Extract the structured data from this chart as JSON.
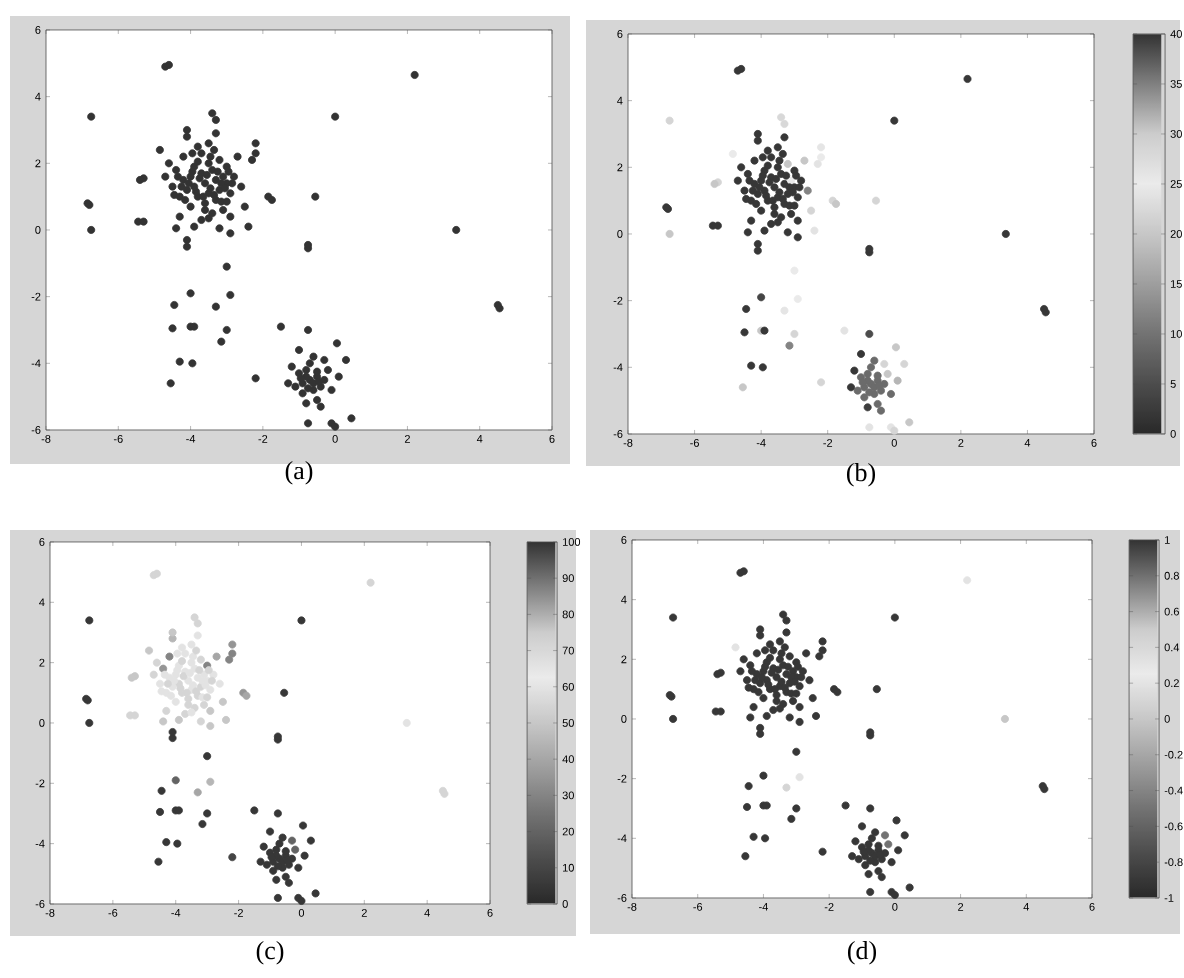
{
  "chart_data": [
    {
      "type": "scatter",
      "title": "(a)",
      "marker": "circle",
      "color": "#333333",
      "xlim": [
        -8,
        6
      ],
      "ylim": [
        -6,
        6
      ],
      "xticks": [
        -8,
        -6,
        -4,
        -2,
        0,
        2,
        4,
        6
      ],
      "yticks": [
        -6,
        -4,
        -2,
        0,
        2,
        4,
        6
      ],
      "x": [
        -3.6,
        -3.3,
        -3.9,
        -3.5,
        -3.7,
        -3.2,
        -4.0,
        -3.4,
        -3.8,
        -3.1,
        -4.1,
        -3.5,
        -3.6,
        -3.0,
        -4.2,
        -3.3,
        -3.9,
        -3.2,
        -4.3,
        -2.9,
        -3.7,
        -4.4,
        -3.0,
        -4.0,
        -3.4,
        -2.8,
        -4.5,
        -3.8,
        -3.1,
        -4.2,
        -4.6,
        -3.5,
        -2.9,
        -4.3,
        -3.7,
        -4.1,
        -3.3,
        -2.7,
        -4.7,
        -2.6,
        -3.9,
        -3.2,
        -2.9,
        -4.4,
        -3.3,
        -3.4,
        -4.1,
        -2.5,
        -2.4,
        -2.2,
        -2.3,
        -2.2,
        -1.85,
        -1.75,
        -5.3,
        -5.4,
        -5.45,
        -5.3,
        -4.85,
        -0.7,
        -0.5,
        -0.9,
        -0.6,
        -0.8,
        -0.4,
        -1.0,
        -0.3,
        -0.7,
        -0.9,
        -0.5,
        -1.1,
        -0.2,
        -0.6,
        -1.2,
        -0.1,
        -0.8,
        -1.3,
        -0.3,
        -1.0,
        -0.4,
        0.1,
        -4.7,
        -4.6,
        -6.75,
        -6.85,
        -6.8,
        -6.75,
        0.0,
        -0.55,
        2.2,
        3.35,
        4.55,
        4.5,
        -0.75,
        -0.75,
        -4.1,
        -4.1,
        -3.0,
        -4.0,
        -2.9,
        -3.3,
        -4.45,
        -4.5,
        -4.0,
        -3.9,
        -3.0,
        -3.15,
        -4.3,
        -3.95,
        -4.55,
        -2.2,
        -1.5,
        -0.75,
        0.05,
        0.3,
        -0.75,
        -0.1,
        0.0,
        0.45,
        -3.45,
        -3.75,
        -3.15,
        -3.85,
        -3.55,
        -3.35,
        -3.95,
        -3.25,
        -4.05,
        -3.65,
        -3.05,
        -4.25,
        -3.45,
        -3.8,
        -3.15,
        -3.6,
        -4.15,
        -2.95,
        -4.35,
        -3.35,
        -3.95,
        -3.0,
        -4.45,
        -2.85,
        -3.5,
        -0.6,
        -0.8,
        -0.5,
        -0.75,
        -0.95,
        -0.45
      ],
      "values": [
        1.4,
        1.5,
        1.3,
        1.1,
        1.7,
        1.2,
        1.6,
        1.8,
        1.0,
        1.6,
        1.2,
        2.0,
        0.8,
        1.4,
        1.5,
        0.9,
        1.9,
        2.1,
        1.0,
        1.1,
        2.3,
        1.8,
        1.9,
        0.7,
        0.5,
        1.6,
        1.3,
        2.5,
        0.6,
        2.2,
        2.0,
        2.6,
        0.4,
        0.4,
        0.3,
        2.8,
        2.9,
        2.2,
        1.6,
        1.3,
        0.1,
        0.05,
        -0.1,
        0.05,
        3.3,
        3.5,
        3.0,
        0.7,
        0.1,
        2.3,
        2.1,
        2.6,
        1.0,
        0.9,
        1.55,
        1.5,
        0.25,
        0.25,
        2.4,
        -4.5,
        -4.4,
        -4.6,
        -4.8,
        -4.2,
        -4.7,
        -4.3,
        -4.5,
        -4.0,
        -4.9,
        -5.1,
        -4.7,
        -4.2,
        -3.8,
        -4.1,
        -4.8,
        -5.2,
        -4.6,
        -3.9,
        -3.6,
        -5.3,
        -4.4,
        4.9,
        4.95,
        3.4,
        0.8,
        0.75,
        0.0,
        3.4,
        1.0,
        4.65,
        0.0,
        -2.35,
        -2.25,
        -0.55,
        -0.45,
        -0.5,
        -0.3,
        -1.1,
        -1.9,
        -1.95,
        -2.3,
        -2.25,
        -2.95,
        -2.9,
        -2.9,
        -3.0,
        -3.35,
        -3.95,
        -4.0,
        -4.6,
        -4.45,
        -2.9,
        -3.0,
        -3.4,
        -3.9,
        -5.8,
        -5.8,
        -5.9,
        -5.65,
        1.25,
        1.55,
        1.4,
        1.15,
        1.65,
        1.05,
        1.75,
        1.75,
        1.4,
        1.0,
        1.25,
        1.3,
        2.2,
        2.05,
        0.85,
        0.6,
        0.9,
        1.75,
        1.6,
        2.4,
        2.3,
        0.85,
        1.05,
        1.4,
        0.35,
        -4.6,
        -4.4,
        -4.25,
        -4.75,
        -4.45,
        -4.55
      ]
    },
    {
      "type": "scatter",
      "title": "(b)",
      "marker": "circle",
      "xlim": [
        -8,
        6
      ],
      "ylim": [
        -6,
        6
      ],
      "xticks": [
        -8,
        -6,
        -4,
        -2,
        0,
        2,
        4,
        6
      ],
      "yticks": [
        -6,
        -4,
        -2,
        0,
        2,
        4,
        6
      ],
      "clim": [
        0,
        40
      ],
      "cticks": [
        0,
        5,
        10,
        15,
        20,
        25,
        30,
        35,
        40
      ],
      "x": [
        -3.6,
        -3.3,
        -3.9,
        -3.5,
        -3.7,
        -3.2,
        -4.0,
        -3.4,
        -3.8,
        -3.1,
        -4.1,
        -3.5,
        -3.6,
        -3.0,
        -4.2,
        -3.3,
        -3.9,
        -3.2,
        -4.3,
        -2.9,
        -3.7,
        -4.4,
        -3.0,
        -4.0,
        -3.4,
        -2.8,
        -4.5,
        -3.8,
        -3.1,
        -4.2,
        -4.6,
        -3.5,
        -2.9,
        -4.3,
        -3.7,
        -4.1,
        -3.3,
        -2.7,
        -4.7,
        -2.6,
        -3.9,
        -3.2,
        -2.9,
        -4.4,
        -3.3,
        -3.4,
        -4.1,
        -2.5,
        -2.4,
        -2.2,
        -2.3,
        -2.2,
        -1.85,
        -1.75,
        -5.3,
        -5.4,
        -5.45,
        -5.3,
        -4.85,
        -0.7,
        -0.5,
        -0.9,
        -0.6,
        -0.8,
        -0.4,
        -1.0,
        -0.3,
        -0.7,
        -0.9,
        -0.5,
        -1.1,
        -0.2,
        -0.6,
        -1.2,
        -0.1,
        -0.8,
        -1.3,
        -0.3,
        -1.0,
        -0.4,
        0.1,
        -4.7,
        -4.6,
        -6.75,
        -6.85,
        -6.8,
        -6.75,
        0.0,
        -0.55,
        2.2,
        3.35,
        4.55,
        4.5,
        -0.75,
        -0.75,
        -4.1,
        -4.1,
        -3.0,
        -4.0,
        -2.9,
        -3.3,
        -4.45,
        -4.5,
        -4.0,
        -3.9,
        -3.0,
        -3.15,
        -4.3,
        -3.95,
        -4.55,
        -2.2,
        -1.5,
        -0.75,
        0.05,
        0.3,
        -0.75,
        -0.1,
        0.0,
        0.45,
        -3.45,
        -3.75,
        -3.15,
        -3.85,
        -3.55,
        -3.35,
        -3.95,
        -3.25,
        -4.05,
        -3.65,
        -3.05,
        -4.25,
        -3.45,
        -3.8,
        -3.15,
        -3.6,
        -4.15,
        -2.95,
        -4.35,
        -3.35,
        -3.95,
        -3.0,
        -4.45,
        -2.85,
        -3.5,
        -0.6,
        -0.8,
        -0.5,
        -0.75,
        -0.95,
        -0.45
      ],
      "values": [
        1.4,
        1.5,
        1.3,
        1.1,
        1.7,
        1.2,
        1.6,
        1.8,
        1.0,
        1.6,
        1.2,
        2.0,
        0.8,
        1.4,
        1.5,
        0.9,
        1.9,
        2.1,
        1.0,
        1.1,
        2.3,
        1.8,
        1.9,
        0.7,
        0.5,
        1.6,
        1.3,
        2.5,
        0.6,
        2.2,
        2.0,
        2.6,
        0.4,
        0.4,
        0.3,
        2.8,
        2.9,
        2.2,
        1.6,
        1.3,
        0.1,
        0.05,
        -0.1,
        0.05,
        3.3,
        3.5,
        3.0,
        0.7,
        0.1,
        2.3,
        2.1,
        2.6,
        1.0,
        0.9,
        1.55,
        1.5,
        0.25,
        0.25,
        2.4,
        -4.5,
        -4.4,
        -4.6,
        -4.8,
        -4.2,
        -4.7,
        -4.3,
        -4.5,
        -4.0,
        -4.9,
        -5.1,
        -4.7,
        -4.2,
        -3.8,
        -4.1,
        -4.8,
        -5.2,
        -4.6,
        -3.9,
        -3.6,
        -5.3,
        -4.4,
        4.9,
        4.95,
        3.4,
        0.8,
        0.75,
        0.0,
        3.4,
        1.0,
        4.65,
        0.0,
        -2.35,
        -2.25,
        -0.55,
        -0.45,
        -0.5,
        -0.3,
        -1.1,
        -1.9,
        -1.95,
        -2.3,
        -2.25,
        -2.95,
        -2.9,
        -2.9,
        -3.0,
        -3.35,
        -3.95,
        -4.0,
        -4.6,
        -4.45,
        -2.9,
        -3.0,
        -3.4,
        -3.9,
        -5.8,
        -5.8,
        -5.9,
        -5.65,
        1.25,
        1.55,
        1.4,
        1.15,
        1.65,
        1.05,
        1.75,
        1.75,
        1.4,
        1.0,
        1.25,
        1.3,
        2.2,
        2.05,
        0.85,
        0.6,
        0.9,
        1.75,
        1.6,
        2.4,
        2.3,
        0.85,
        1.05,
        1.4,
        0.35,
        -4.6,
        -4.4,
        -4.25,
        -4.75,
        -4.45,
        -4.55
      ],
      "cvalues": [
        2,
        2,
        2,
        2,
        2,
        2,
        2,
        2,
        2,
        25,
        2,
        2,
        2,
        2,
        2,
        2,
        2,
        20,
        2,
        2,
        2,
        2,
        2,
        2,
        2,
        2,
        2,
        2,
        2,
        2,
        2,
        2,
        2,
        2,
        2,
        2,
        2,
        20,
        2,
        12,
        2,
        2,
        2,
        2,
        28,
        28,
        2,
        22,
        24,
        25,
        24,
        26,
        22,
        20,
        22,
        20,
        2,
        2,
        25,
        9,
        9,
        9,
        9,
        9,
        9,
        9,
        9,
        9,
        9,
        9,
        9,
        20,
        9,
        2,
        9,
        3,
        2,
        22,
        2,
        9,
        18,
        2,
        2,
        22,
        2,
        2,
        20,
        2,
        22,
        2,
        2,
        2,
        2,
        2,
        2,
        2,
        2,
        25,
        4,
        25,
        26,
        2,
        2,
        20,
        2,
        22,
        12,
        2,
        2,
        20,
        22,
        24,
        5,
        20,
        22,
        24,
        24,
        22,
        20,
        2,
        2,
        2,
        2,
        2,
        2,
        2,
        2,
        2,
        2,
        2,
        2,
        2,
        2,
        2,
        2,
        2,
        2,
        2,
        2,
        2,
        2,
        2,
        2,
        2,
        9,
        9,
        9,
        9,
        9,
        9
      ]
    },
    {
      "type": "scatter",
      "title": "(c)",
      "marker": "circle",
      "xlim": [
        -8,
        6
      ],
      "ylim": [
        -6,
        6
      ],
      "xticks": [
        -8,
        -6,
        -4,
        -2,
        0,
        2,
        4,
        6
      ],
      "yticks": [
        -6,
        -4,
        -2,
        0,
        2,
        4,
        6
      ],
      "clim": [
        0,
        100
      ],
      "cticks": [
        0,
        10,
        20,
        30,
        40,
        50,
        60,
        70,
        80,
        90,
        100
      ],
      "x": [
        -3.6,
        -3.3,
        -3.9,
        -3.5,
        -3.7,
        -3.2,
        -4.0,
        -3.4,
        -3.8,
        -3.1,
        -4.1,
        -3.5,
        -3.6,
        -3.0,
        -4.2,
        -3.3,
        -3.9,
        -3.2,
        -4.3,
        -2.9,
        -3.7,
        -4.4,
        -3.0,
        -4.0,
        -3.4,
        -2.8,
        -4.5,
        -3.8,
        -3.1,
        -4.2,
        -4.6,
        -3.5,
        -2.9,
        -4.3,
        -3.7,
        -4.1,
        -3.3,
        -2.7,
        -4.7,
        -2.6,
        -3.9,
        -3.2,
        -2.9,
        -4.4,
        -3.3,
        -3.4,
        -4.1,
        -2.5,
        -2.4,
        -2.2,
        -2.3,
        -2.2,
        -1.85,
        -1.75,
        -5.3,
        -5.4,
        -5.45,
        -5.3,
        -4.85,
        -0.7,
        -0.5,
        -0.9,
        -0.6,
        -0.8,
        -0.4,
        -1.0,
        -0.3,
        -0.7,
        -0.9,
        -0.5,
        -1.1,
        -0.2,
        -0.6,
        -1.2,
        -0.1,
        -0.8,
        -1.3,
        -0.3,
        -1.0,
        -0.4,
        0.1,
        -4.7,
        -4.6,
        -6.75,
        -6.85,
        -6.8,
        -6.75,
        0.0,
        -0.55,
        2.2,
        3.35,
        4.55,
        4.5,
        -0.75,
        -0.75,
        -4.1,
        -4.1,
        -3.0,
        -4.0,
        -2.9,
        -3.3,
        -4.45,
        -4.5,
        -4.0,
        -3.9,
        -3.0,
        -3.15,
        -4.3,
        -3.95,
        -4.55,
        -2.2,
        -1.5,
        -0.75,
        0.05,
        0.3,
        -0.75,
        -0.1,
        0.0,
        0.45,
        -3.45,
        -3.75,
        -3.15,
        -3.85,
        -3.55,
        -3.35,
        -3.95,
        -3.25,
        -4.05,
        -3.65,
        -3.05,
        -4.25,
        -3.45,
        -3.8,
        -3.15,
        -3.6,
        -4.15,
        -2.95,
        -4.35,
        -3.35,
        -3.95,
        -3.0,
        -4.45,
        -2.85,
        -3.5,
        -0.6,
        -0.8,
        -0.5,
        -0.75,
        -0.95,
        -0.45
      ],
      "values": [
        1.4,
        1.5,
        1.3,
        1.1,
        1.7,
        1.2,
        1.6,
        1.8,
        1.0,
        1.6,
        1.2,
        2.0,
        0.8,
        1.4,
        1.5,
        0.9,
        1.9,
        2.1,
        1.0,
        1.1,
        2.3,
        1.8,
        1.9,
        0.7,
        0.5,
        1.6,
        1.3,
        2.5,
        0.6,
        2.2,
        2.0,
        2.6,
        0.4,
        0.4,
        0.3,
        2.8,
        2.9,
        2.2,
        1.6,
        1.3,
        0.1,
        0.05,
        -0.1,
        0.05,
        3.3,
        3.5,
        3.0,
        0.7,
        0.1,
        2.3,
        2.1,
        2.6,
        1.0,
        0.9,
        1.55,
        1.5,
        0.25,
        0.25,
        2.4,
        -4.5,
        -4.4,
        -4.6,
        -4.8,
        -4.2,
        -4.7,
        -4.3,
        -4.5,
        -4.0,
        -4.9,
        -5.1,
        -4.7,
        -4.2,
        -3.8,
        -4.1,
        -4.8,
        -5.2,
        -4.6,
        -3.9,
        -3.6,
        -5.3,
        -4.4,
        4.9,
        4.95,
        3.4,
        0.8,
        0.75,
        0.0,
        3.4,
        1.0,
        4.65,
        0.0,
        -2.35,
        -2.25,
        -0.55,
        -0.45,
        -0.5,
        -0.3,
        -1.1,
        -1.9,
        -1.95,
        -2.3,
        -2.25,
        -2.95,
        -2.9,
        -2.9,
        -3.0,
        -3.35,
        -3.95,
        -4.0,
        -4.6,
        -4.45,
        -2.9,
        -3.0,
        -3.4,
        -3.9,
        -5.8,
        -5.8,
        -5.9,
        -5.65,
        1.25,
        1.55,
        1.4,
        1.15,
        1.65,
        1.05,
        1.75,
        1.75,
        1.4,
        1.0,
        1.25,
        1.3,
        2.2,
        2.05,
        0.85,
        0.6,
        0.9,
        1.75,
        1.6,
        2.4,
        2.3,
        0.85,
        1.05,
        1.4,
        0.35,
        -4.6,
        -4.4,
        -4.25,
        -4.75,
        -4.45,
        -4.55
      ],
      "cvalues": [
        60,
        60,
        55,
        60,
        60,
        55,
        60,
        60,
        55,
        60,
        60,
        60,
        55,
        60,
        60,
        55,
        60,
        55,
        60,
        60,
        60,
        35,
        30,
        60,
        55,
        60,
        60,
        60,
        55,
        30,
        55,
        60,
        50,
        55,
        55,
        45,
        60,
        40,
        55,
        60,
        50,
        55,
        50,
        50,
        55,
        55,
        50,
        50,
        50,
        30,
        30,
        35,
        35,
        40,
        50,
        50,
        55,
        55,
        50,
        5,
        5,
        5,
        5,
        5,
        5,
        5,
        5,
        5,
        5,
        5,
        5,
        20,
        5,
        5,
        5,
        5,
        5,
        20,
        5,
        5,
        5,
        55,
        55,
        5,
        5,
        5,
        5,
        5,
        5,
        55,
        60,
        55,
        55,
        5,
        5,
        5,
        5,
        5,
        20,
        45,
        40,
        5,
        5,
        5,
        5,
        5,
        5,
        5,
        5,
        5,
        10,
        5,
        5,
        5,
        5,
        5,
        5,
        5,
        5,
        60,
        55,
        60,
        55,
        60,
        55,
        60,
        55,
        60,
        55,
        60,
        55,
        60,
        55,
        60,
        55,
        60,
        55,
        60,
        55,
        60,
        55,
        60,
        55,
        60,
        5,
        5,
        5,
        5,
        5,
        5
      ]
    },
    {
      "type": "scatter",
      "title": "(d)",
      "marker": "circle",
      "xlim": [
        -8,
        6
      ],
      "ylim": [
        -6,
        6
      ],
      "xticks": [
        -8,
        -6,
        -4,
        -2,
        0,
        2,
        4,
        6
      ],
      "yticks": [
        -6,
        -4,
        -2,
        0,
        2,
        4,
        6
      ],
      "clim": [
        -1,
        1
      ],
      "cticks": [
        -1,
        -0.8,
        -0.6,
        -0.4,
        -0.2,
        0,
        0.2,
        0.4,
        0.6,
        0.8,
        1
      ],
      "x": [
        -3.6,
        -3.3,
        -3.9,
        -3.5,
        -3.7,
        -3.2,
        -4.0,
        -3.4,
        -3.8,
        -3.1,
        -4.1,
        -3.5,
        -3.6,
        -3.0,
        -4.2,
        -3.3,
        -3.9,
        -3.2,
        -4.3,
        -2.9,
        -3.7,
        -4.4,
        -3.0,
        -4.0,
        -3.4,
        -2.8,
        -4.5,
        -3.8,
        -3.1,
        -4.2,
        -4.6,
        -3.5,
        -2.9,
        -4.3,
        -3.7,
        -4.1,
        -3.3,
        -2.7,
        -4.7,
        -2.6,
        -3.9,
        -3.2,
        -2.9,
        -4.4,
        -3.3,
        -3.4,
        -4.1,
        -2.5,
        -2.4,
        -2.2,
        -2.3,
        -2.2,
        -1.85,
        -1.75,
        -5.3,
        -5.4,
        -5.45,
        -5.3,
        -4.85,
        -0.7,
        -0.5,
        -0.9,
        -0.6,
        -0.8,
        -0.4,
        -1.0,
        -0.3,
        -0.7,
        -0.9,
        -0.5,
        -1.1,
        -0.2,
        -0.6,
        -1.2,
        -0.1,
        -0.8,
        -1.3,
        -0.3,
        -1.0,
        -0.4,
        0.1,
        -4.7,
        -4.6,
        -6.75,
        -6.85,
        -6.8,
        -6.75,
        0.0,
        -0.55,
        2.2,
        3.35,
        4.55,
        4.5,
        -0.75,
        -0.75,
        -4.1,
        -4.1,
        -3.0,
        -4.0,
        -2.9,
        -3.3,
        -4.45,
        -4.5,
        -4.0,
        -3.9,
        -3.0,
        -3.15,
        -4.3,
        -3.95,
        -4.55,
        -2.2,
        -1.5,
        -0.75,
        0.05,
        0.3,
        -0.75,
        -0.1,
        0.0,
        0.45,
        -3.45,
        -3.75,
        -3.15,
        -3.85,
        -3.55,
        -3.35,
        -3.95,
        -3.25,
        -4.05,
        -3.65,
        -3.05,
        -4.25,
        -3.45,
        -3.8,
        -3.15,
        -3.6,
        -4.15,
        -2.95,
        -4.35,
        -3.35,
        -3.95,
        -3.0,
        -4.45,
        -2.85,
        -3.5,
        -0.6,
        -0.8,
        -0.5,
        -0.75,
        -0.95,
        -0.45
      ],
      "values": [
        1.4,
        1.5,
        1.3,
        1.1,
        1.7,
        1.2,
        1.6,
        1.8,
        1.0,
        1.6,
        1.2,
        2.0,
        0.8,
        1.4,
        1.5,
        0.9,
        1.9,
        2.1,
        1.0,
        1.1,
        2.3,
        1.8,
        1.9,
        0.7,
        0.5,
        1.6,
        1.3,
        2.5,
        0.6,
        2.2,
        2.0,
        2.6,
        0.4,
        0.4,
        0.3,
        2.8,
        2.9,
        2.2,
        1.6,
        1.3,
        0.1,
        0.05,
        -0.1,
        0.05,
        3.3,
        3.5,
        3.0,
        0.7,
        0.1,
        2.3,
        2.1,
        2.6,
        1.0,
        0.9,
        1.55,
        1.5,
        0.25,
        0.25,
        2.4,
        -4.5,
        -4.4,
        -4.6,
        -4.8,
        -4.2,
        -4.7,
        -4.3,
        -4.5,
        -4.0,
        -4.9,
        -5.1,
        -4.7,
        -4.2,
        -3.8,
        -4.1,
        -4.8,
        -5.2,
        -4.6,
        -3.9,
        -3.6,
        -5.3,
        -4.4,
        4.9,
        4.95,
        3.4,
        0.8,
        0.75,
        0.0,
        3.4,
        1.0,
        4.65,
        0.0,
        -2.35,
        -2.25,
        -0.55,
        -0.45,
        -0.5,
        -0.3,
        -1.1,
        -1.9,
        -1.95,
        -2.3,
        -2.25,
        -2.95,
        -2.9,
        -2.9,
        -3.0,
        -3.35,
        -3.95,
        -4.0,
        -4.6,
        -4.45,
        -2.9,
        -3.0,
        -3.4,
        -3.9,
        -5.8,
        -5.8,
        -5.9,
        -5.65,
        1.25,
        1.55,
        1.4,
        1.15,
        1.65,
        1.05,
        1.75,
        1.75,
        1.4,
        1.0,
        1.25,
        1.3,
        2.2,
        2.05,
        0.85,
        0.6,
        0.9,
        1.75,
        1.6,
        2.4,
        2.3,
        0.85,
        1.05,
        1.4,
        0.35,
        -4.6,
        -4.4,
        -4.25,
        -4.75,
        -4.45,
        -4.55
      ],
      "cvalues": [
        -0.9,
        -0.9,
        -0.9,
        -0.9,
        -0.9,
        -0.9,
        -0.9,
        -0.9,
        -0.9,
        -0.9,
        -0.9,
        -0.9,
        -0.9,
        -0.9,
        -0.9,
        -0.9,
        -0.9,
        -0.9,
        -0.9,
        -0.9,
        -0.9,
        -0.9,
        -0.9,
        -0.9,
        -0.9,
        -0.9,
        -0.9,
        -0.9,
        -0.9,
        -0.9,
        -0.9,
        -0.9,
        -0.9,
        -0.9,
        -0.9,
        -0.9,
        -0.9,
        -0.9,
        -0.9,
        -0.9,
        -0.9,
        -0.9,
        -0.9,
        -0.9,
        -0.9,
        -0.9,
        -0.9,
        -0.9,
        -0.9,
        -0.9,
        -0.9,
        -0.9,
        -0.9,
        -0.9,
        -0.9,
        -0.9,
        -0.9,
        -0.9,
        0.2,
        -0.9,
        -0.9,
        -0.9,
        -0.9,
        -0.9,
        -0.9,
        -0.9,
        -0.9,
        -0.9,
        -0.9,
        -0.9,
        -0.9,
        -0.5,
        -0.9,
        -0.9,
        -0.9,
        -0.9,
        -0.9,
        -0.5,
        -0.9,
        -0.9,
        -0.9,
        -0.9,
        -0.9,
        -0.9,
        -0.9,
        -0.9,
        -0.9,
        -0.9,
        -0.9,
        0.2,
        0.0,
        -0.9,
        -0.9,
        -0.9,
        -0.9,
        -0.9,
        -0.9,
        -0.9,
        -0.9,
        0.2,
        0.1,
        -0.9,
        -0.9,
        -0.9,
        -0.9,
        -0.9,
        -0.9,
        -0.9,
        -0.9,
        -0.9,
        -0.9,
        -0.9,
        -0.9,
        -0.9,
        -0.9,
        -0.9,
        -0.9,
        -0.9,
        -0.9,
        -0.9,
        -0.9,
        -0.9,
        -0.9,
        -0.9,
        -0.9,
        -0.9,
        -0.9,
        -0.9,
        -0.9,
        -0.9,
        -0.9,
        -0.9,
        -0.9,
        -0.9,
        -0.9,
        -0.9,
        -0.9,
        -0.9,
        -0.9,
        -0.9,
        -0.9,
        -0.9,
        -0.9,
        -0.9,
        -0.9,
        -0.9,
        -0.9,
        -0.9,
        -0.9,
        -0.9
      ]
    }
  ]
}
